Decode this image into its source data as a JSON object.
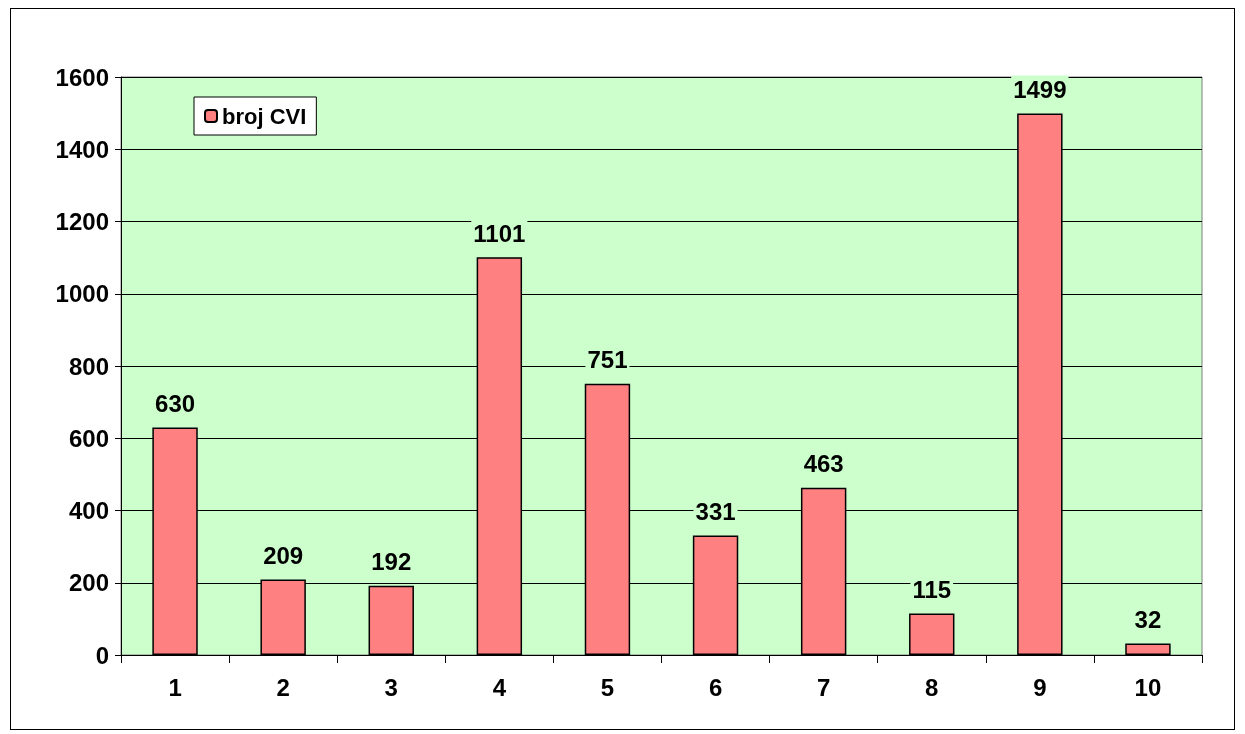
{
  "chart_data": {
    "type": "bar",
    "categories": [
      "1",
      "2",
      "3",
      "4",
      "5",
      "6",
      "7",
      "8",
      "9",
      "10"
    ],
    "series": [
      {
        "name": "broj CVI",
        "color": "#ff8080",
        "values": [
          630,
          209,
          192,
          1101,
          751,
          331,
          463,
          115,
          1499,
          32
        ]
      }
    ],
    "ylim": [
      0,
      1600
    ],
    "yticks": [
      0,
      200,
      400,
      600,
      800,
      1000,
      1200,
      1400,
      1600
    ],
    "grid": "y",
    "legend": "top left",
    "data_labels": true
  }
}
